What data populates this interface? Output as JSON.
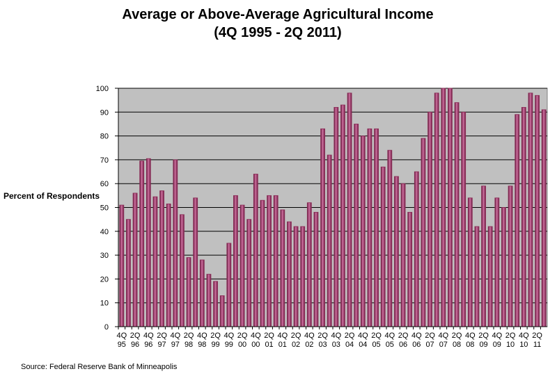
{
  "chart_data": {
    "type": "bar",
    "title": "Average or Above-Average Agricultural Income",
    "subtitle": "(4Q 1995 - 2Q 2011)",
    "y_label": "Percent of Respondents",
    "source": "Source: Federal Reserve Bank of Minneapolis",
    "color": "#8b2a55",
    "background": "#c0c0c0",
    "grid": true,
    "ylim": [
      0,
      100
    ],
    "yticks": [
      0,
      10,
      20,
      30,
      40,
      50,
      60,
      70,
      80,
      90,
      100
    ],
    "categories": [
      "4Q 95",
      null,
      "2Q 96",
      null,
      "4Q 96",
      null,
      "2Q 97",
      null,
      "4Q 97",
      null,
      "2Q 98",
      null,
      "4Q 98",
      null,
      "2Q 99",
      null,
      "4Q 99",
      null,
      "2Q 00",
      null,
      "4Q 00",
      null,
      "2Q 01",
      null,
      "4Q 01",
      null,
      "2Q 02",
      null,
      "4Q 02",
      null,
      "2Q 03",
      null,
      "4Q 03",
      null,
      "2Q 04",
      null,
      "4Q 04",
      null,
      "2Q 05",
      null,
      "4Q 05",
      null,
      "2Q 06",
      null,
      "4Q 06",
      null,
      "2Q 07",
      null,
      "4Q 07",
      null,
      "2Q 08",
      null,
      "4Q 08",
      null,
      "2Q 09",
      null,
      "4Q 09",
      null,
      "2Q 10",
      null,
      "4Q 10",
      null,
      "2Q 11",
      null
    ],
    "values": [
      51,
      45,
      56,
      69.5,
      70.5,
      54.5,
      57,
      51.5,
      70,
      47,
      29,
      54,
      28,
      22,
      19,
      13,
      35,
      55,
      51,
      45,
      64,
      53,
      55,
      55,
      49,
      44,
      42,
      42,
      52,
      48,
      83,
      72,
      92,
      93,
      98,
      85,
      80,
      83,
      83,
      67,
      74,
      63,
      60,
      48,
      65,
      79,
      90,
      98,
      100,
      100,
      94,
      90,
      54,
      42,
      59,
      42,
      54,
      50,
      59,
      89,
      92,
      98,
      97,
      91
    ]
  }
}
